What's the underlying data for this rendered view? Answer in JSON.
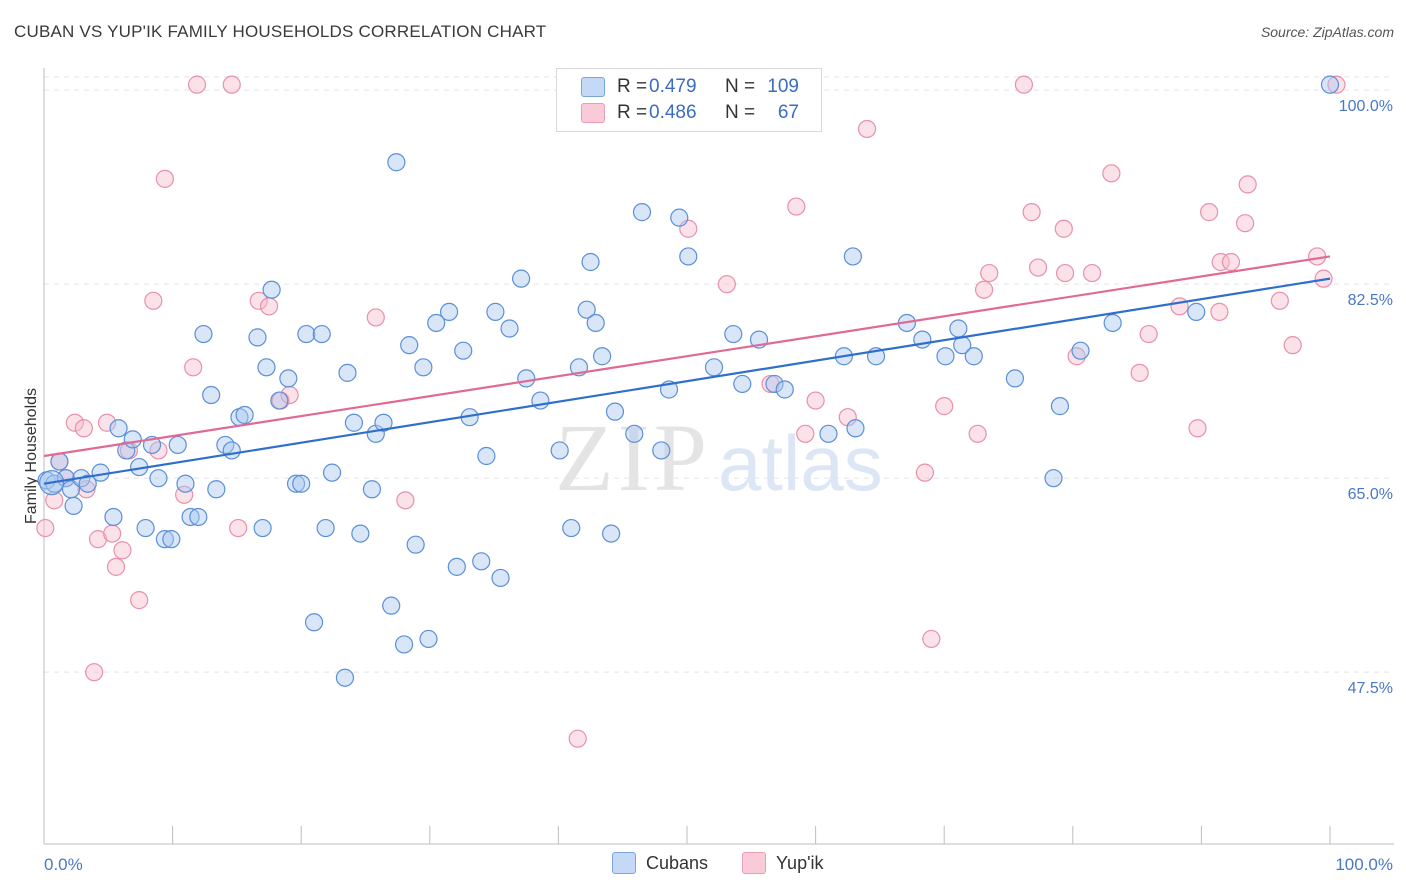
{
  "header": {
    "title": "CUBAN VS YUP'IK FAMILY HOUSEHOLDS CORRELATION CHART",
    "source": "Source: ZipAtlas.com"
  },
  "legend": {
    "rows": [
      {
        "r_label": "R =",
        "r_value": "0.479",
        "n_label": "N =",
        "n_value": "109"
      },
      {
        "r_label": "R =",
        "r_value": "0.486",
        "n_label": "N =",
        "n_value": "67"
      }
    ]
  },
  "bottom_legend": {
    "series1": "Cubans",
    "series2": "Yup'ik"
  },
  "watermark": {
    "zip": "ZIP",
    "atlas": "atlas"
  },
  "colors": {
    "cubans_fill": "#a8c8f0",
    "cubans_stroke": "#5b8fd8",
    "cubans_line": "#2f6fcc",
    "yupik_fill": "#f6bccd",
    "yupik_stroke": "#e890ac",
    "yupik_line": "#e06a93",
    "tick_color": "#4a78c6"
  },
  "chart_data": {
    "type": "scatter",
    "title": "CUBAN VS YUP'IK FAMILY HOUSEHOLDS CORRELATION CHART",
    "xlabel": "",
    "ylabel": "Family Households",
    "xlim": [
      0,
      100
    ],
    "ylim": [
      32,
      102
    ],
    "x_tick_labels": [
      "0.0%",
      "100.0%"
    ],
    "y_ticks": [
      47.5,
      65.0,
      82.5,
      100.0
    ],
    "y_tick_labels": [
      "47.5%",
      "65.0%",
      "82.5%",
      "100.0%"
    ],
    "grid": "horizontal dashed",
    "legend_position": "top-center",
    "series": [
      {
        "name": "Cubans",
        "r": 0.479,
        "n": 109,
        "trend": {
          "x": [
            0,
            100
          ],
          "y": [
            64.5,
            83.0
          ]
        },
        "points": [
          [
            0.2,
            64.8
          ],
          [
            0.8,
            64.5
          ],
          [
            1.2,
            66.5
          ],
          [
            1.7,
            65.0
          ],
          [
            2.1,
            64.0
          ],
          [
            2.3,
            62.5
          ],
          [
            2.9,
            65.0
          ],
          [
            3.4,
            64.5
          ],
          [
            4.4,
            65.5
          ],
          [
            5.4,
            61.5
          ],
          [
            5.8,
            69.5
          ],
          [
            6.4,
            67.5
          ],
          [
            6.9,
            68.5
          ],
          [
            7.4,
            66.0
          ],
          [
            7.9,
            60.5
          ],
          [
            8.4,
            68.0
          ],
          [
            8.9,
            65.0
          ],
          [
            9.4,
            59.5
          ],
          [
            9.9,
            59.5
          ],
          [
            10.4,
            68.0
          ],
          [
            11.0,
            64.5
          ],
          [
            11.4,
            61.5
          ],
          [
            12.0,
            61.5
          ],
          [
            12.4,
            78.0
          ],
          [
            13.0,
            72.5
          ],
          [
            13.4,
            64.0
          ],
          [
            14.1,
            68.0
          ],
          [
            14.6,
            67.5
          ],
          [
            15.2,
            70.5
          ],
          [
            15.6,
            70.7
          ],
          [
            16.6,
            77.7
          ],
          [
            17.0,
            60.5
          ],
          [
            17.3,
            75.0
          ],
          [
            17.7,
            82.0
          ],
          [
            18.3,
            72.0
          ],
          [
            19.0,
            74.0
          ],
          [
            19.6,
            64.5
          ],
          [
            20.0,
            64.5
          ],
          [
            20.4,
            78.0
          ],
          [
            21.0,
            52.0
          ],
          [
            21.6,
            78.0
          ],
          [
            21.9,
            60.5
          ],
          [
            22.4,
            65.5
          ],
          [
            23.4,
            47.0
          ],
          [
            23.6,
            74.5
          ],
          [
            24.1,
            70.0
          ],
          [
            24.6,
            60.0
          ],
          [
            25.5,
            64.0
          ],
          [
            25.8,
            69.0
          ],
          [
            26.4,
            70.0
          ],
          [
            27.0,
            53.5
          ],
          [
            27.4,
            93.5
          ],
          [
            28.0,
            50.0
          ],
          [
            28.4,
            77.0
          ],
          [
            28.9,
            59.0
          ],
          [
            29.5,
            75.0
          ],
          [
            29.9,
            50.5
          ],
          [
            30.5,
            79.0
          ],
          [
            31.5,
            80.0
          ],
          [
            32.1,
            57.0
          ],
          [
            32.6,
            76.5
          ],
          [
            33.1,
            70.5
          ],
          [
            34.0,
            57.5
          ],
          [
            34.4,
            67.0
          ],
          [
            35.1,
            80.0
          ],
          [
            35.5,
            56.0
          ],
          [
            36.2,
            78.5
          ],
          [
            37.1,
            83.0
          ],
          [
            37.5,
            74.0
          ],
          [
            38.6,
            72.0
          ],
          [
            40.1,
            67.5
          ],
          [
            41.0,
            60.5
          ],
          [
            41.6,
            75.0
          ],
          [
            42.5,
            84.5
          ],
          [
            42.2,
            80.2
          ],
          [
            42.9,
            79.0
          ],
          [
            43.4,
            76.0
          ],
          [
            44.1,
            60.0
          ],
          [
            44.4,
            71.0
          ],
          [
            45.9,
            69.0
          ],
          [
            46.5,
            89.0
          ],
          [
            48.0,
            67.5
          ],
          [
            48.6,
            73.0
          ],
          [
            49.4,
            88.5
          ],
          [
            50.1,
            85.0
          ],
          [
            52.1,
            75.0
          ],
          [
            53.6,
            78.0
          ],
          [
            54.3,
            73.5
          ],
          [
            55.6,
            77.5
          ],
          [
            56.8,
            73.5
          ],
          [
            57.6,
            73.0
          ],
          [
            61.0,
            69.0
          ],
          [
            62.2,
            76.0
          ],
          [
            62.9,
            85.0
          ],
          [
            63.1,
            69.5
          ],
          [
            64.7,
            76.0
          ],
          [
            67.1,
            79.0
          ],
          [
            68.3,
            77.5
          ],
          [
            70.1,
            76.0
          ],
          [
            71.1,
            78.5
          ],
          [
            71.4,
            77.0
          ],
          [
            72.3,
            76.0
          ],
          [
            75.5,
            74.0
          ],
          [
            78.5,
            65.0
          ],
          [
            79.0,
            71.5
          ],
          [
            80.6,
            76.5
          ],
          [
            83.1,
            79.0
          ],
          [
            89.6,
            80.0
          ],
          [
            100.0,
            100.5
          ]
        ]
      },
      {
        "name": "Yup'ik",
        "r": 0.486,
        "n": 67,
        "trend": {
          "x": [
            0,
            100
          ],
          "y": [
            67.0,
            85.0
          ]
        },
        "points": [
          [
            0.1,
            60.5
          ],
          [
            0.8,
            63.0
          ],
          [
            1.2,
            66.5
          ],
          [
            1.7,
            65.0
          ],
          [
            2.4,
            70.0
          ],
          [
            3.1,
            69.5
          ],
          [
            3.3,
            64.0
          ],
          [
            3.9,
            47.5
          ],
          [
            4.2,
            59.5
          ],
          [
            4.9,
            70.0
          ],
          [
            5.3,
            60.0
          ],
          [
            5.6,
            57.0
          ],
          [
            6.1,
            58.5
          ],
          [
            6.6,
            67.5
          ],
          [
            7.4,
            54.0
          ],
          [
            8.5,
            81.0
          ],
          [
            8.9,
            67.5
          ],
          [
            9.4,
            92.0
          ],
          [
            10.9,
            63.5
          ],
          [
            11.6,
            75.0
          ],
          [
            11.9,
            100.5
          ],
          [
            14.6,
            100.5
          ],
          [
            15.1,
            60.5
          ],
          [
            16.7,
            81.0
          ],
          [
            17.5,
            80.5
          ],
          [
            18.4,
            72.0
          ],
          [
            19.1,
            72.5
          ],
          [
            25.8,
            79.5
          ],
          [
            28.1,
            63.0
          ],
          [
            41.5,
            41.5
          ],
          [
            50.1,
            87.5
          ],
          [
            53.1,
            82.5
          ],
          [
            56.5,
            73.5
          ],
          [
            58.5,
            89.5
          ],
          [
            59.2,
            69.0
          ],
          [
            60.0,
            72.0
          ],
          [
            62.5,
            70.5
          ],
          [
            64.0,
            96.5
          ],
          [
            68.5,
            65.5
          ],
          [
            69.0,
            50.5
          ],
          [
            70.0,
            71.5
          ],
          [
            72.6,
            69.0
          ],
          [
            73.1,
            82.0
          ],
          [
            73.5,
            83.5
          ],
          [
            76.2,
            100.5
          ],
          [
            76.8,
            89.0
          ],
          [
            77.3,
            84.0
          ],
          [
            79.3,
            87.5
          ],
          [
            79.4,
            83.5
          ],
          [
            80.3,
            76.0
          ],
          [
            81.5,
            83.5
          ],
          [
            83.0,
            92.5
          ],
          [
            85.2,
            74.5
          ],
          [
            85.9,
            78.0
          ],
          [
            88.3,
            80.5
          ],
          [
            89.7,
            69.5
          ],
          [
            90.6,
            89.0
          ],
          [
            91.4,
            80.0
          ],
          [
            91.5,
            84.5
          ],
          [
            92.3,
            84.5
          ],
          [
            93.4,
            88.0
          ],
          [
            93.6,
            91.5
          ],
          [
            96.1,
            81.0
          ],
          [
            97.1,
            77.0
          ],
          [
            99.0,
            85.0
          ],
          [
            99.5,
            83.0
          ],
          [
            100.5,
            100.5
          ]
        ]
      }
    ]
  }
}
